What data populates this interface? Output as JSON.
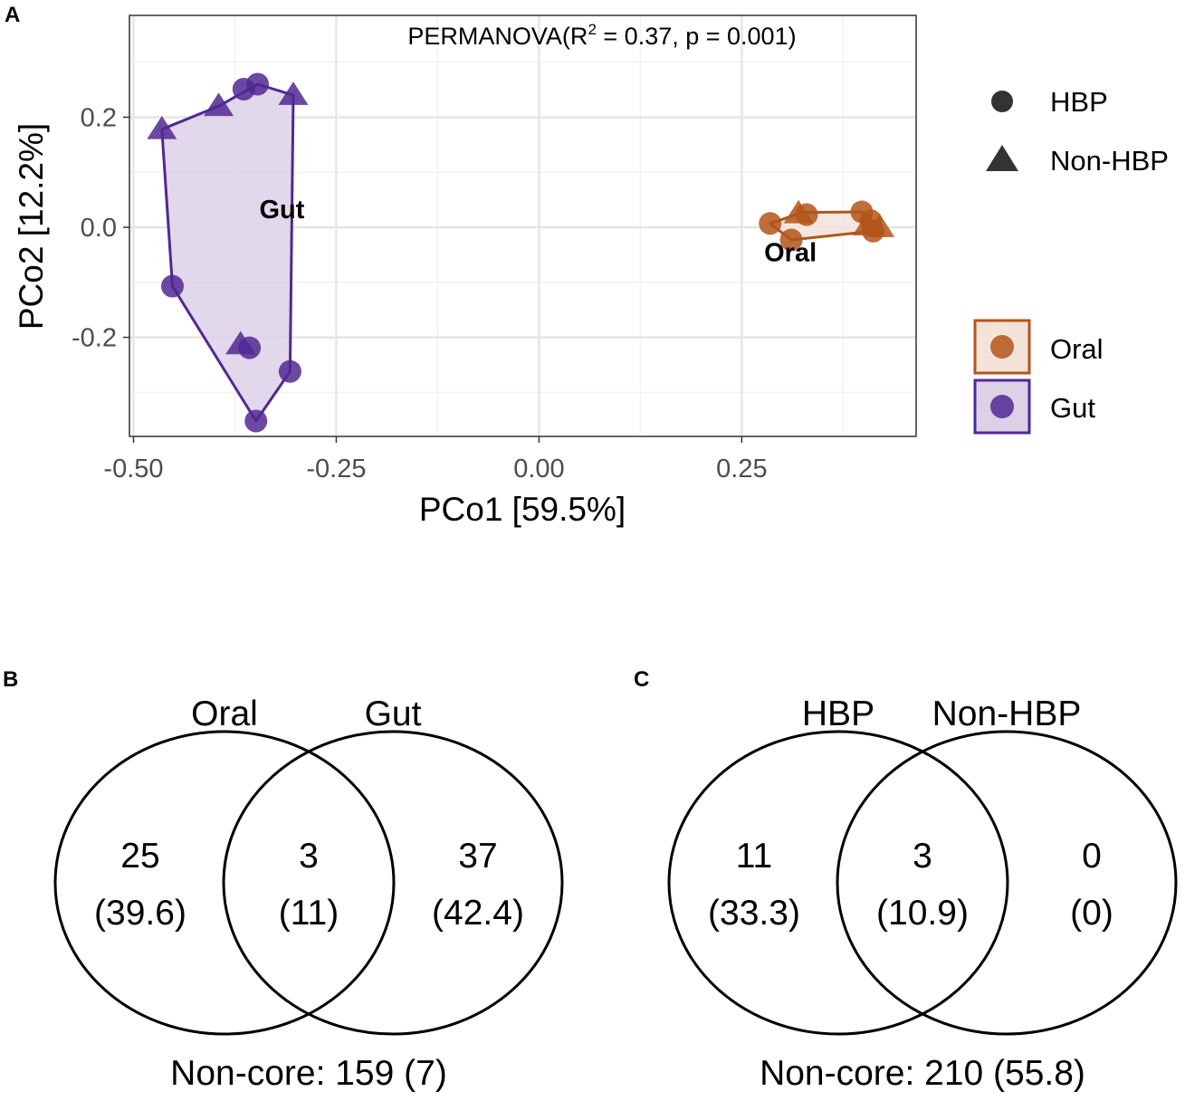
{
  "panel_tags": {
    "a": "A",
    "b": "B",
    "c": "C"
  },
  "colors": {
    "oral": "#b35519",
    "oral_fill": "#f3e3d9",
    "gut": "#512893",
    "gut_fill": "#dcd1e7",
    "grid_major": "#e6e6e6",
    "grid_minor": "#f2f2f2",
    "axis_text": "#4d4d4d",
    "shape_key": "#333333"
  },
  "chart_data": [
    {
      "type": "scatter",
      "title": "",
      "annotation": {
        "prefix": "PERMANOVA(R",
        "sup": "2",
        "suffix": " = 0.37, p = 0.001)"
      },
      "xlabel": "PCo1 [59.5%]",
      "ylabel": "PCo2 [12.2%]",
      "xlim": [
        -0.505,
        0.465
      ],
      "ylim": [
        -0.38,
        0.385
      ],
      "grid": true,
      "xticks": [
        {
          "value": -0.5,
          "label": "-0.50"
        },
        {
          "value": -0.25,
          "label": "-0.25"
        },
        {
          "value": 0.0,
          "label": "0.00"
        },
        {
          "value": 0.25,
          "label": "0.25"
        }
      ],
      "yticks": [
        {
          "value": -0.2,
          "label": "-0.2"
        },
        {
          "value": 0.0,
          "label": "0.0"
        },
        {
          "value": 0.2,
          "label": "0.2"
        }
      ],
      "legend": {
        "position": "right",
        "shape_entries": [
          {
            "label": "HBP",
            "shape": "circle"
          },
          {
            "label": "Non-HBP",
            "shape": "triangle"
          }
        ],
        "color_entries": [
          {
            "label": "Oral",
            "group": "oral"
          },
          {
            "label": "Gut",
            "group": "gut"
          }
        ]
      },
      "series": [
        {
          "name": "Gut",
          "group": "gut",
          "label": "Gut",
          "label_pos": [
            -0.317,
            0.033
          ],
          "hull": [
            [
              -0.347,
              0.26
            ],
            [
              -0.303,
              0.24
            ],
            [
              -0.307,
              -0.262
            ],
            [
              -0.349,
              -0.352
            ],
            [
              -0.452,
              -0.107
            ],
            [
              -0.465,
              0.178
            ],
            [
              -0.395,
              0.22
            ]
          ],
          "points": [
            {
              "x": -0.347,
              "y": 0.26,
              "shape": "circle"
            },
            {
              "x": -0.364,
              "y": 0.251,
              "shape": "circle"
            },
            {
              "x": -0.303,
              "y": 0.24,
              "shape": "triangle"
            },
            {
              "x": -0.395,
              "y": 0.22,
              "shape": "triangle"
            },
            {
              "x": -0.465,
              "y": 0.178,
              "shape": "triangle"
            },
            {
              "x": -0.452,
              "y": -0.107,
              "shape": "circle"
            },
            {
              "x": -0.368,
              "y": -0.213,
              "shape": "triangle"
            },
            {
              "x": -0.357,
              "y": -0.219,
              "shape": "circle"
            },
            {
              "x": -0.307,
              "y": -0.262,
              "shape": "circle"
            },
            {
              "x": -0.349,
              "y": -0.352,
              "shape": "circle"
            }
          ]
        },
        {
          "name": "Oral",
          "group": "oral",
          "label": "Oral",
          "label_pos": [
            0.31,
            -0.045
          ],
          "hull": [
            [
              0.285,
              0.007
            ],
            [
              0.325,
              0.027
            ],
            [
              0.398,
              0.028
            ],
            [
              0.42,
              0.0
            ],
            [
              0.412,
              -0.007
            ],
            [
              0.311,
              -0.023
            ]
          ],
          "points": [
            {
              "x": 0.285,
              "y": 0.007,
              "shape": "circle"
            },
            {
              "x": 0.32,
              "y": 0.025,
              "shape": "triangle"
            },
            {
              "x": 0.33,
              "y": 0.023,
              "shape": "circle"
            },
            {
              "x": 0.398,
              "y": 0.028,
              "shape": "circle"
            },
            {
              "x": 0.409,
              "y": 0.012,
              "shape": "circle"
            },
            {
              "x": 0.405,
              "y": 0.003,
              "shape": "triangle"
            },
            {
              "x": 0.42,
              "y": 0.0,
              "shape": "triangle"
            },
            {
              "x": 0.412,
              "y": -0.007,
              "shape": "circle"
            },
            {
              "x": 0.311,
              "y": -0.023,
              "shape": "circle"
            }
          ]
        }
      ]
    },
    {
      "type": "venn",
      "sets": [
        "Oral",
        "Gut"
      ],
      "regions": [
        {
          "count": "25",
          "pct": "(39.6)"
        },
        {
          "count": "3",
          "pct": "(11)"
        },
        {
          "count": "37",
          "pct": "(42.4)"
        }
      ],
      "footer": "Non-core: 159 (7)"
    },
    {
      "type": "venn",
      "sets": [
        "HBP",
        "Non-HBP"
      ],
      "regions": [
        {
          "count": "11",
          "pct": "(33.3)"
        },
        {
          "count": "3",
          "pct": "(10.9)"
        },
        {
          "count": "0",
          "pct": "(0)"
        }
      ],
      "footer": "Non-core: 210 (55.8)"
    }
  ]
}
